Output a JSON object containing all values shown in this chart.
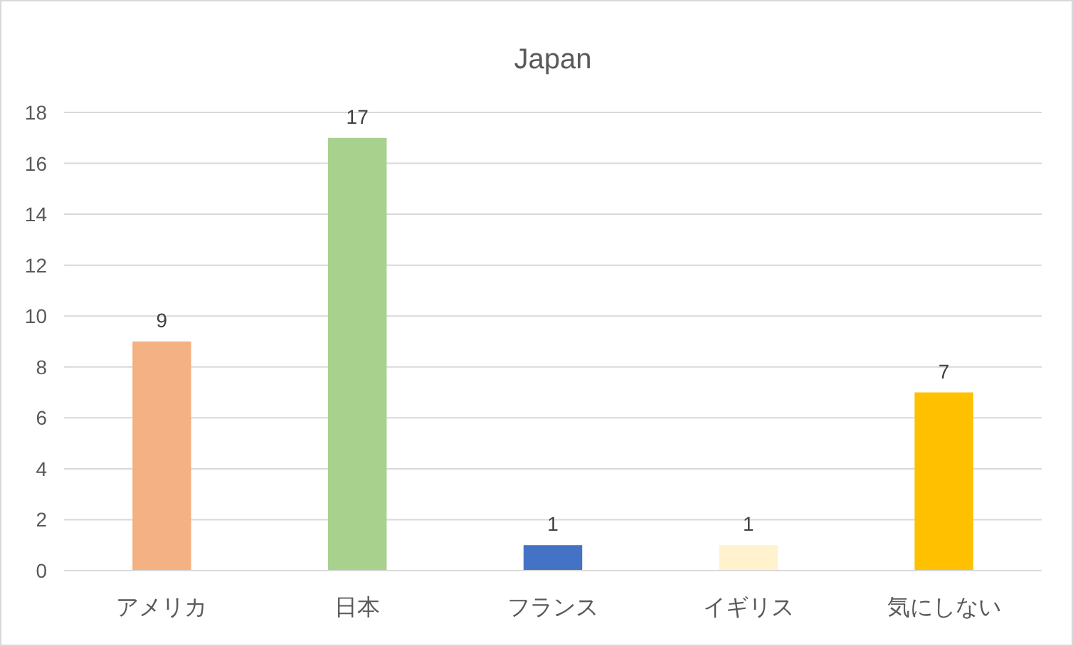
{
  "chart_data": {
    "type": "bar",
    "title": "Japan",
    "categories": [
      "アメリカ",
      "日本",
      "フランス",
      "イギリス",
      "気にしない"
    ],
    "values": [
      9,
      17,
      1,
      1,
      7
    ],
    "colors": [
      "#f4b183",
      "#a9d18e",
      "#4472c4",
      "#fff2cc",
      "#ffc000"
    ],
    "ylim": [
      0,
      18
    ],
    "yticks": [
      0,
      2,
      4,
      6,
      8,
      10,
      12,
      14,
      16,
      18
    ],
    "grid": "y",
    "data_labels": true
  }
}
